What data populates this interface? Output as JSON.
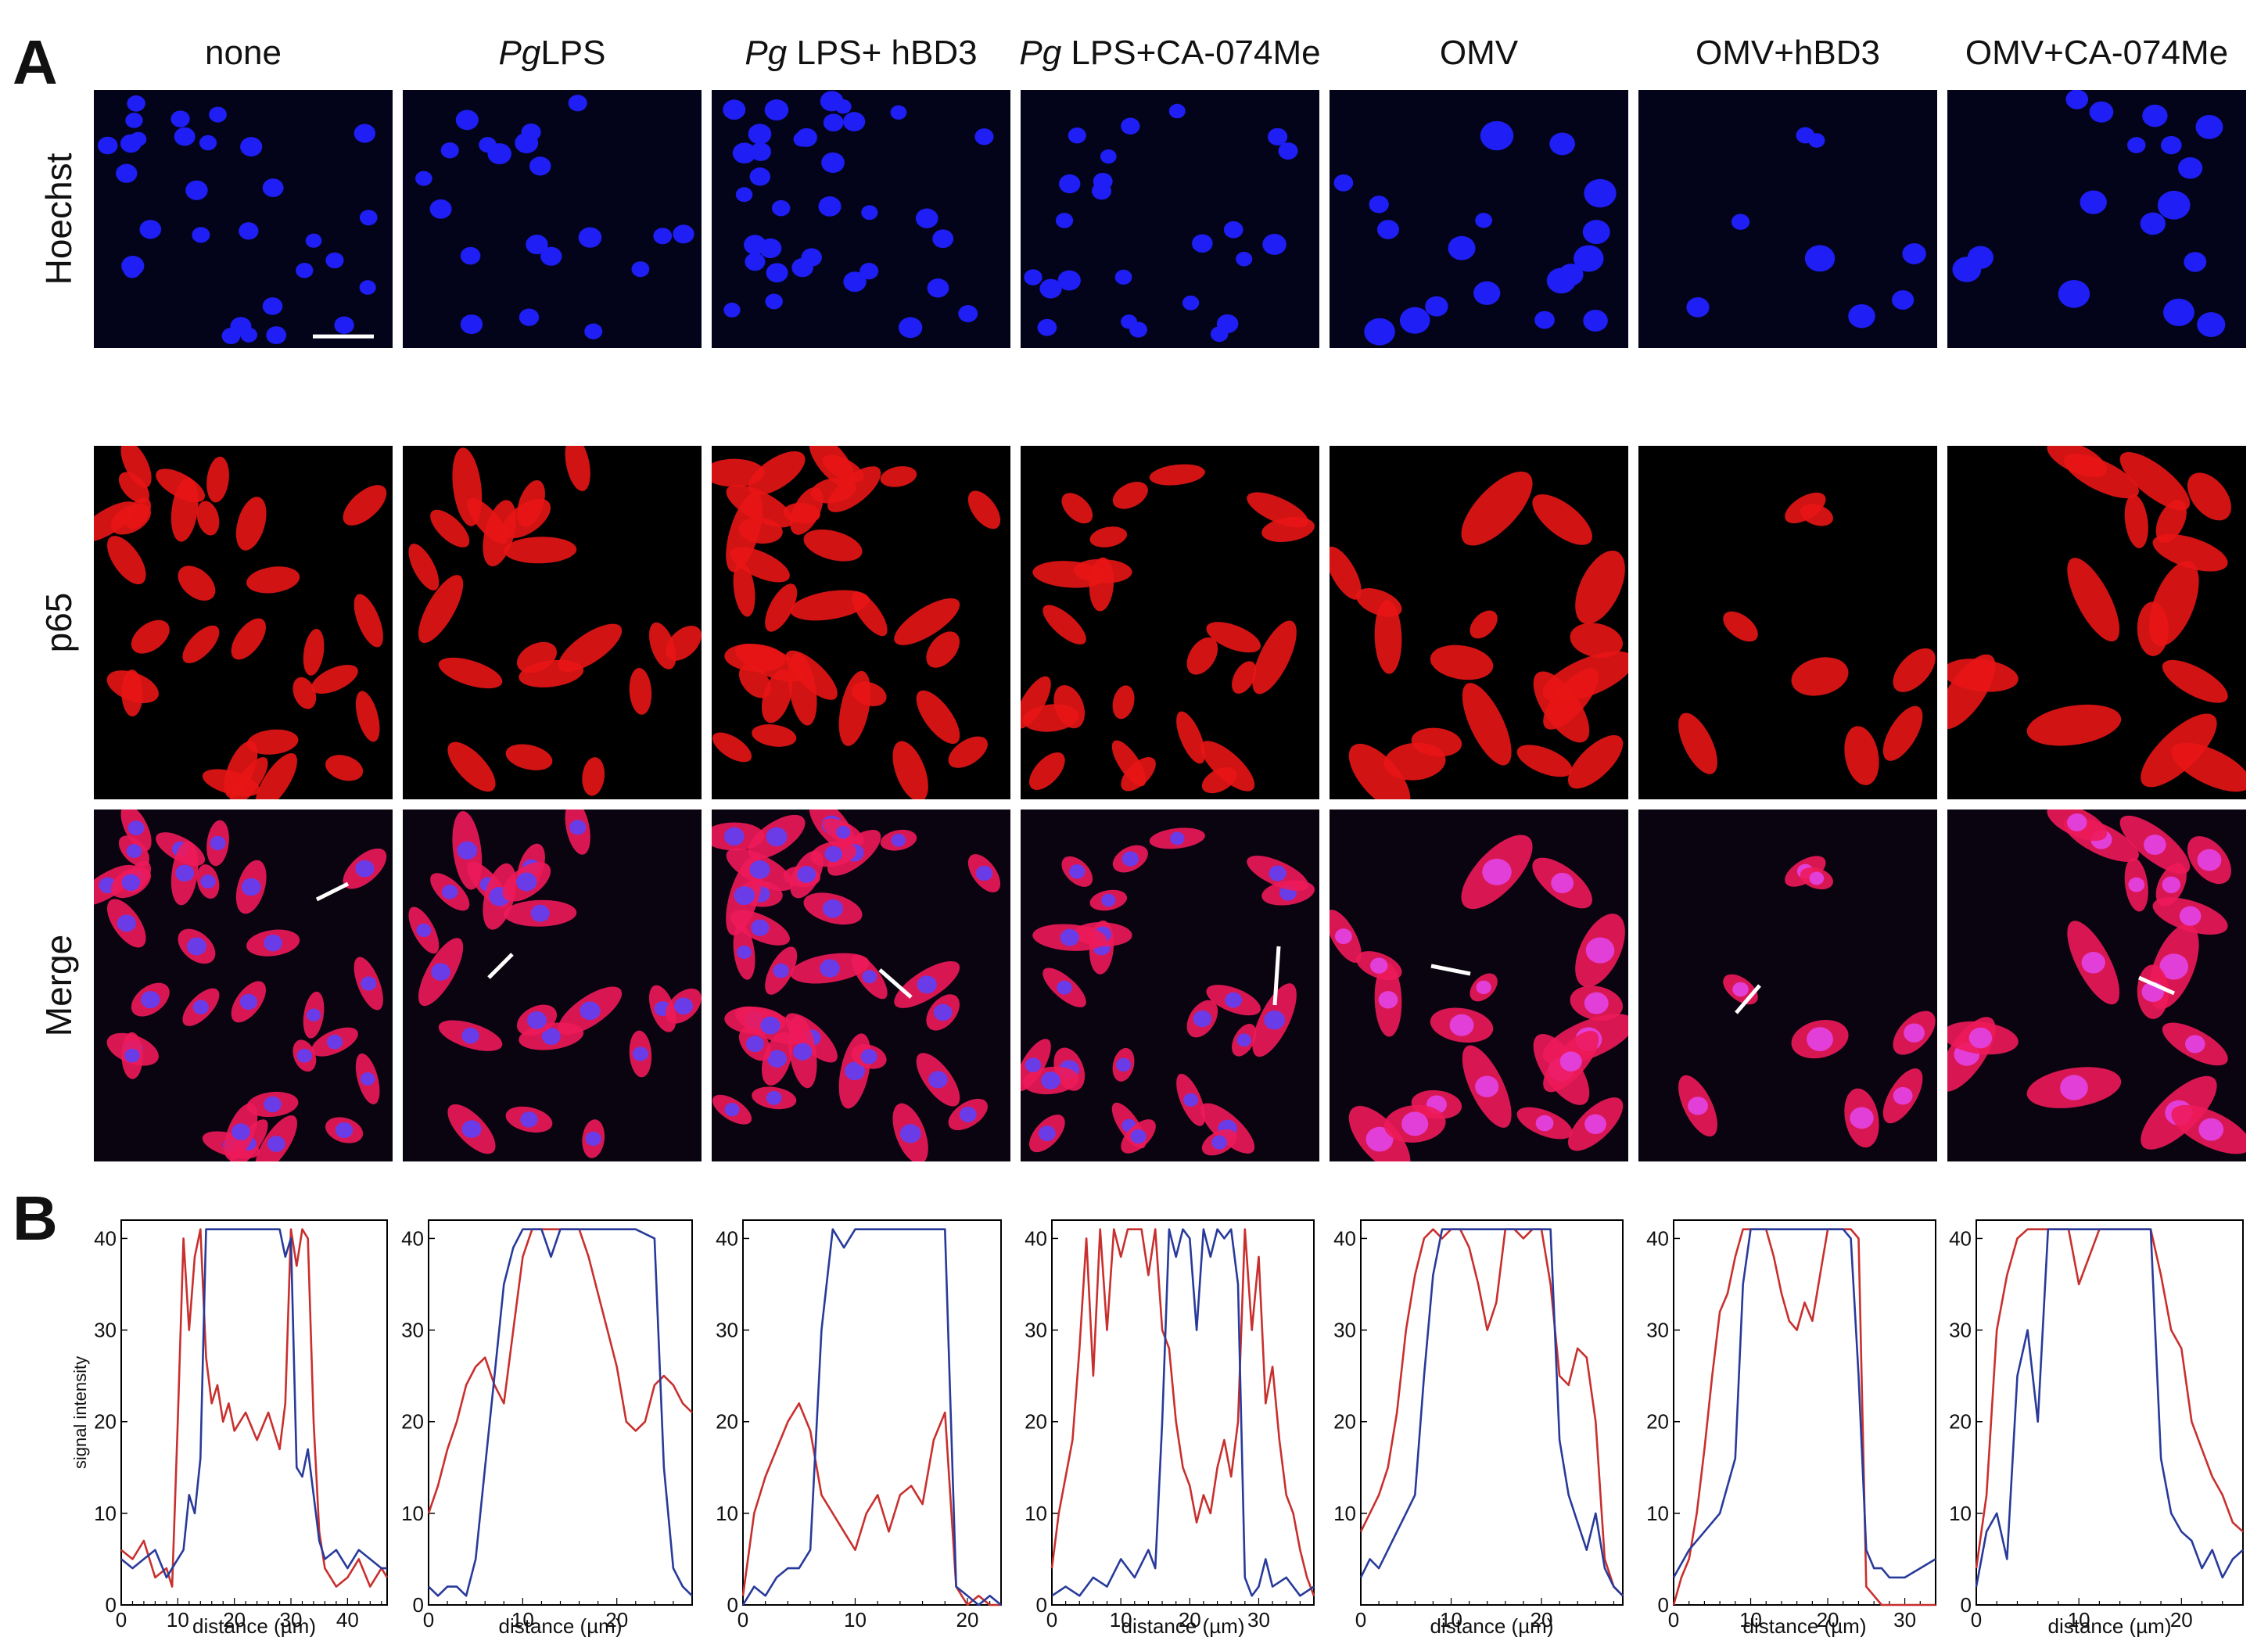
{
  "panels": {
    "a": "A",
    "b": "B"
  },
  "columns": [
    {
      "plain_before": "none",
      "italic": "",
      "plain_after": ""
    },
    {
      "plain_before": "",
      "italic": "Pg",
      "plain_after": "LPS"
    },
    {
      "plain_before": "",
      "italic": "Pg",
      "plain_after": " LPS+ hBD3"
    },
    {
      "plain_before": "",
      "italic": "Pg",
      "plain_after": " LPS+CA-074Me"
    },
    {
      "plain_before": "OMV",
      "italic": "",
      "plain_after": ""
    },
    {
      "plain_before": "OMV+hBD3",
      "italic": "",
      "plain_after": ""
    },
    {
      "plain_before": "OMV+CA-074Me",
      "italic": "",
      "plain_after": ""
    }
  ],
  "rows": [
    "Hoechst",
    "p65",
    "Merge"
  ],
  "colors": {
    "nucleus": "#1e1ef5",
    "cytoplasm": "#e81515",
    "merge_nucleus": "#6a3ce8",
    "merge_cell": "#ee1a5a",
    "red_trace": "#c8302e",
    "blue_trace": "#283a9a"
  },
  "chart_data": [
    {
      "type": "line",
      "title": "none",
      "xlabel": "distance (µm)",
      "ylabel": "signal intensity",
      "xlim": [
        0,
        47
      ],
      "ylim": [
        0,
        42
      ],
      "xticks": [
        0,
        10,
        20,
        30,
        40
      ],
      "yticks": [
        0,
        10,
        20,
        30,
        40
      ],
      "series": [
        {
          "name": "p65",
          "color": "red",
          "x": [
            0,
            2,
            4,
            6,
            8,
            9,
            10,
            11,
            12,
            13,
            14,
            15,
            16,
            17,
            18,
            19,
            20,
            22,
            24,
            26,
            28,
            29,
            30,
            31,
            32,
            33,
            34,
            35,
            36,
            38,
            40,
            42,
            44,
            46,
            47
          ],
          "y": [
            6,
            5,
            7,
            3,
            4,
            2,
            20,
            40,
            30,
            38,
            41,
            27,
            22,
            24,
            20,
            22,
            19,
            21,
            18,
            21,
            17,
            22,
            41,
            37,
            41,
            40,
            20,
            8,
            4,
            2,
            3,
            5,
            2,
            4,
            3
          ]
        },
        {
          "name": "Hoechst",
          "color": "blue",
          "x": [
            0,
            2,
            4,
            6,
            8,
            10,
            11,
            12,
            13,
            14,
            15,
            16,
            17,
            18,
            20,
            22,
            24,
            26,
            28,
            29,
            30,
            31,
            32,
            33,
            34,
            35,
            36,
            38,
            40,
            42,
            44,
            46,
            47
          ],
          "y": [
            5,
            4,
            5,
            6,
            3,
            5,
            6,
            12,
            10,
            16,
            41,
            41,
            41,
            41,
            41,
            41,
            41,
            41,
            41,
            38,
            40,
            15,
            14,
            17,
            12,
            7,
            5,
            6,
            4,
            6,
            5,
            4,
            4
          ]
        }
      ]
    },
    {
      "type": "line",
      "title": "PgLPS",
      "xlabel": "distance (µm)",
      "ylabel": "",
      "xlim": [
        0,
        28
      ],
      "ylim": [
        0,
        42
      ],
      "xticks": [
        0,
        10,
        20
      ],
      "yticks": [
        0,
        10,
        20,
        30,
        40
      ],
      "series": [
        {
          "name": "p65",
          "color": "red",
          "x": [
            0,
            1,
            2,
            3,
            4,
            5,
            6,
            7,
            8,
            9,
            10,
            11,
            12,
            14,
            16,
            17,
            18,
            19,
            20,
            21,
            22,
            23,
            24,
            25,
            26,
            27,
            28
          ],
          "y": [
            10,
            13,
            17,
            20,
            24,
            26,
            27,
            24,
            22,
            30,
            38,
            41,
            41,
            41,
            41,
            38,
            34,
            30,
            26,
            20,
            19,
            20,
            24,
            25,
            24,
            22,
            21
          ]
        },
        {
          "name": "Hoechst",
          "color": "blue",
          "x": [
            0,
            1,
            2,
            3,
            4,
            5,
            6,
            7,
            8,
            9,
            10,
            11,
            12,
            13,
            14,
            16,
            18,
            20,
            22,
            24,
            25,
            26,
            27,
            28
          ],
          "y": [
            2,
            1,
            2,
            2,
            1,
            5,
            15,
            25,
            35,
            39,
            41,
            41,
            41,
            38,
            41,
            41,
            41,
            41,
            41,
            40,
            15,
            4,
            2,
            1
          ]
        }
      ]
    },
    {
      "type": "line",
      "title": "Pg LPS+ hBD3",
      "xlabel": "",
      "xlabel_visible": false,
      "ylabel": "",
      "xlim": [
        0,
        23
      ],
      "ylim": [
        0,
        42
      ],
      "xticks": [
        0,
        10,
        20
      ],
      "yticks": [
        0,
        10,
        20,
        30,
        40
      ],
      "series": [
        {
          "name": "p65",
          "color": "red",
          "x": [
            0,
            1,
            2,
            3,
            4,
            5,
            6,
            7,
            8,
            9,
            10,
            11,
            12,
            13,
            14,
            15,
            16,
            17,
            18,
            19,
            20,
            21,
            22,
            23
          ],
          "y": [
            1,
            10,
            14,
            17,
            20,
            22,
            19,
            12,
            10,
            8,
            6,
            10,
            12,
            8,
            12,
            13,
            11,
            18,
            21,
            2,
            0,
            1,
            0,
            0
          ]
        },
        {
          "name": "Hoechst",
          "color": "blue",
          "x": [
            0,
            1,
            2,
            3,
            4,
            5,
            6,
            7,
            8,
            9,
            10,
            11,
            12,
            14,
            16,
            17,
            18,
            19,
            20,
            21,
            22,
            23
          ],
          "y": [
            0,
            2,
            1,
            3,
            4,
            4,
            6,
            30,
            41,
            39,
            41,
            41,
            41,
            41,
            41,
            41,
            41,
            2,
            1,
            0,
            1,
            0
          ]
        }
      ]
    },
    {
      "type": "line",
      "title": "Pg LPS+CA-074Me",
      "xlabel": "distance (µm)",
      "ylabel": "",
      "xlim": [
        0,
        38
      ],
      "ylim": [
        0,
        42
      ],
      "xticks": [
        0,
        10,
        20,
        30
      ],
      "yticks": [
        0,
        10,
        20,
        30,
        40
      ],
      "series": [
        {
          "name": "p65",
          "color": "red",
          "x": [
            0,
            1,
            2,
            3,
            4,
            5,
            6,
            7,
            8,
            9,
            10,
            11,
            12,
            13,
            14,
            15,
            16,
            17,
            18,
            19,
            20,
            21,
            22,
            23,
            24,
            25,
            26,
            27,
            28,
            29,
            30,
            31,
            32,
            33,
            34,
            35,
            36,
            37,
            38
          ],
          "y": [
            4,
            10,
            14,
            18,
            28,
            40,
            25,
            41,
            30,
            41,
            38,
            41,
            41,
            41,
            36,
            41,
            30,
            28,
            20,
            15,
            13,
            9,
            12,
            10,
            15,
            18,
            14,
            20,
            41,
            30,
            38,
            22,
            26,
            18,
            12,
            10,
            6,
            3,
            1
          ]
        },
        {
          "name": "Hoechst",
          "color": "blue",
          "x": [
            0,
            2,
            4,
            6,
            8,
            10,
            12,
            14,
            15,
            16,
            17,
            18,
            19,
            20,
            21,
            22,
            23,
            24,
            25,
            26,
            27,
            28,
            29,
            30,
            31,
            32,
            34,
            36,
            38
          ],
          "y": [
            1,
            2,
            1,
            3,
            2,
            5,
            3,
            6,
            4,
            20,
            41,
            38,
            41,
            40,
            30,
            41,
            38,
            41,
            40,
            41,
            35,
            3,
            1,
            2,
            5,
            2,
            3,
            1,
            2
          ]
        }
      ]
    },
    {
      "type": "line",
      "title": "OMV",
      "xlabel": "distance (µm)",
      "ylabel": "",
      "xlim": [
        0,
        29
      ],
      "ylim": [
        0,
        42
      ],
      "xticks": [
        0,
        10,
        20
      ],
      "yticks": [
        10,
        20,
        30,
        40
      ],
      "series": [
        {
          "name": "p65",
          "color": "red",
          "x": [
            0,
            1,
            2,
            3,
            4,
            5,
            6,
            7,
            8,
            9,
            10,
            11,
            12,
            13,
            14,
            15,
            16,
            17,
            18,
            19,
            20,
            21,
            22,
            23,
            24,
            25,
            26,
            27,
            28,
            29
          ],
          "y": [
            8,
            10,
            12,
            15,
            21,
            30,
            36,
            40,
            41,
            40,
            41,
            41,
            39,
            35,
            30,
            33,
            41,
            41,
            40,
            41,
            41,
            35,
            25,
            24,
            28,
            27,
            20,
            5,
            2,
            1
          ]
        },
        {
          "name": "Hoechst",
          "color": "blue",
          "x": [
            0,
            1,
            2,
            3,
            4,
            5,
            6,
            7,
            8,
            9,
            10,
            11,
            12,
            14,
            16,
            18,
            20,
            21,
            22,
            23,
            24,
            25,
            26,
            27,
            28,
            29
          ],
          "y": [
            3,
            5,
            4,
            6,
            8,
            10,
            12,
            25,
            36,
            41,
            41,
            41,
            41,
            41,
            41,
            41,
            41,
            41,
            18,
            12,
            9,
            6,
            10,
            4,
            2,
            1
          ]
        }
      ]
    },
    {
      "type": "line",
      "title": "OMV+hBD3",
      "xlabel": "distance (µm)",
      "ylabel": "",
      "xlim": [
        0,
        34
      ],
      "ylim": [
        0,
        42
      ],
      "xticks": [
        0,
        10,
        20,
        30
      ],
      "yticks": [
        0,
        10,
        20,
        30,
        40
      ],
      "series": [
        {
          "name": "p65",
          "color": "red",
          "x": [
            0,
            1,
            2,
            3,
            4,
            5,
            6,
            7,
            8,
            9,
            10,
            12,
            13,
            14,
            15,
            16,
            17,
            18,
            19,
            20,
            21,
            22,
            23,
            24,
            25,
            26,
            27,
            28,
            30,
            32,
            34
          ],
          "y": [
            0,
            3,
            5,
            10,
            17,
            25,
            32,
            34,
            38,
            41,
            41,
            41,
            38,
            34,
            31,
            30,
            33,
            31,
            36,
            41,
            41,
            41,
            41,
            40,
            2,
            1,
            0,
            0,
            0,
            0,
            0
          ]
        },
        {
          "name": "Hoechst",
          "color": "blue",
          "x": [
            0,
            2,
            4,
            6,
            8,
            9,
            10,
            12,
            14,
            16,
            18,
            20,
            22,
            23,
            24,
            25,
            26,
            27,
            28,
            30,
            32,
            34
          ],
          "y": [
            3,
            6,
            8,
            10,
            16,
            35,
            41,
            41,
            41,
            41,
            41,
            41,
            41,
            40,
            25,
            6,
            4,
            4,
            3,
            3,
            4,
            5
          ]
        }
      ]
    },
    {
      "type": "line",
      "title": "OMV+CA-074Me",
      "xlabel": "distance (µm)",
      "ylabel": "",
      "xlim": [
        0,
        26
      ],
      "ylim": [
        0,
        42
      ],
      "xticks": [
        0,
        10,
        20
      ],
      "yticks": [
        0,
        10,
        20,
        30,
        40
      ],
      "series": [
        {
          "name": "p65",
          "color": "red",
          "x": [
            0,
            1,
            2,
            3,
            4,
            5,
            6,
            7,
            8,
            9,
            10,
            11,
            12,
            13,
            14,
            15,
            16,
            17,
            18,
            19,
            20,
            21,
            22,
            23,
            24,
            25,
            26
          ],
          "y": [
            4,
            12,
            30,
            36,
            40,
            41,
            41,
            41,
            41,
            41,
            35,
            38,
            41,
            41,
            41,
            41,
            41,
            41,
            36,
            30,
            28,
            20,
            17,
            14,
            12,
            9,
            8
          ]
        },
        {
          "name": "Hoechst",
          "color": "blue",
          "x": [
            0,
            1,
            2,
            3,
            4,
            5,
            6,
            7,
            8,
            9,
            10,
            12,
            14,
            16,
            17,
            18,
            19,
            20,
            21,
            22,
            23,
            24,
            25,
            26
          ],
          "y": [
            2,
            8,
            10,
            5,
            25,
            30,
            20,
            41,
            41,
            41,
            41,
            41,
            41,
            41,
            41,
            16,
            10,
            8,
            7,
            4,
            6,
            3,
            5,
            6
          ]
        }
      ]
    }
  ]
}
